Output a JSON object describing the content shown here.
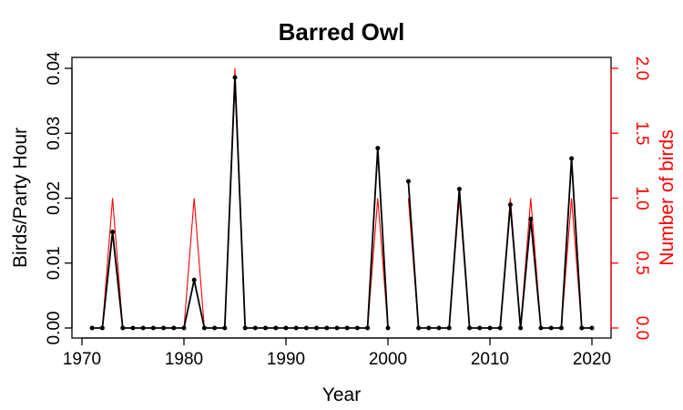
{
  "chart_data": {
    "type": "line",
    "title": "Barred Owl",
    "xlabel": "Year",
    "ylabel_left": "Birds/Party Hour",
    "ylabel_right": "Number of birds",
    "xlim": [
      1970,
      2020
    ],
    "ylim_left": [
      0,
      0.04
    ],
    "ylim_right": [
      0,
      2.0
    ],
    "x_ticks": [
      "1970",
      "1980",
      "1990",
      "2000",
      "2010",
      "2020"
    ],
    "y_left_ticks": [
      "0.00",
      "0.01",
      "0.02",
      "0.03",
      "0.04"
    ],
    "y_right_ticks": [
      "0.0",
      "0.5",
      "1.0",
      "1.5",
      "2.0"
    ],
    "grid": false,
    "colors": {
      "left": "#000000",
      "right": "#ff0000"
    },
    "x": [
      1971,
      1972,
      1973,
      1974,
      1975,
      1976,
      1977,
      1978,
      1979,
      1980,
      1981,
      1982,
      1983,
      1984,
      1985,
      1986,
      1987,
      1988,
      1989,
      1990,
      1991,
      1992,
      1993,
      1994,
      1995,
      1996,
      1997,
      1998,
      1999,
      2000,
      2001,
      2002,
      2003,
      2004,
      2005,
      2006,
      2007,
      2008,
      2009,
      2010,
      2011,
      2012,
      2013,
      2014,
      2015,
      2016,
      2017,
      2018,
      2019,
      2020
    ],
    "series": [
      {
        "axis": "left",
        "values": [
          0,
          0,
          0.0148,
          0,
          0,
          0,
          0,
          0,
          0,
          0,
          0.0074,
          0,
          0,
          0,
          0.0386,
          0,
          0,
          0,
          0,
          0,
          0,
          0,
          0,
          0,
          0,
          0,
          0,
          0,
          0.0277,
          0,
          null,
          0.0226,
          0,
          0,
          0,
          0,
          0.0214,
          0,
          0,
          0,
          0,
          0.019,
          0,
          0.0168,
          0,
          0,
          0,
          0.0261,
          0,
          0
        ]
      },
      {
        "axis": "right",
        "values": [
          0,
          0,
          1,
          0,
          0,
          0,
          0,
          0,
          0,
          0,
          1,
          0,
          0,
          0,
          2,
          0,
          0,
          0,
          0,
          0,
          0,
          0,
          0,
          0,
          0,
          0,
          0,
          0,
          1,
          0,
          null,
          1,
          0,
          0,
          0,
          0,
          1,
          0,
          0,
          0,
          0,
          1,
          0,
          1,
          0,
          0,
          0,
          1,
          0,
          0
        ]
      }
    ]
  }
}
